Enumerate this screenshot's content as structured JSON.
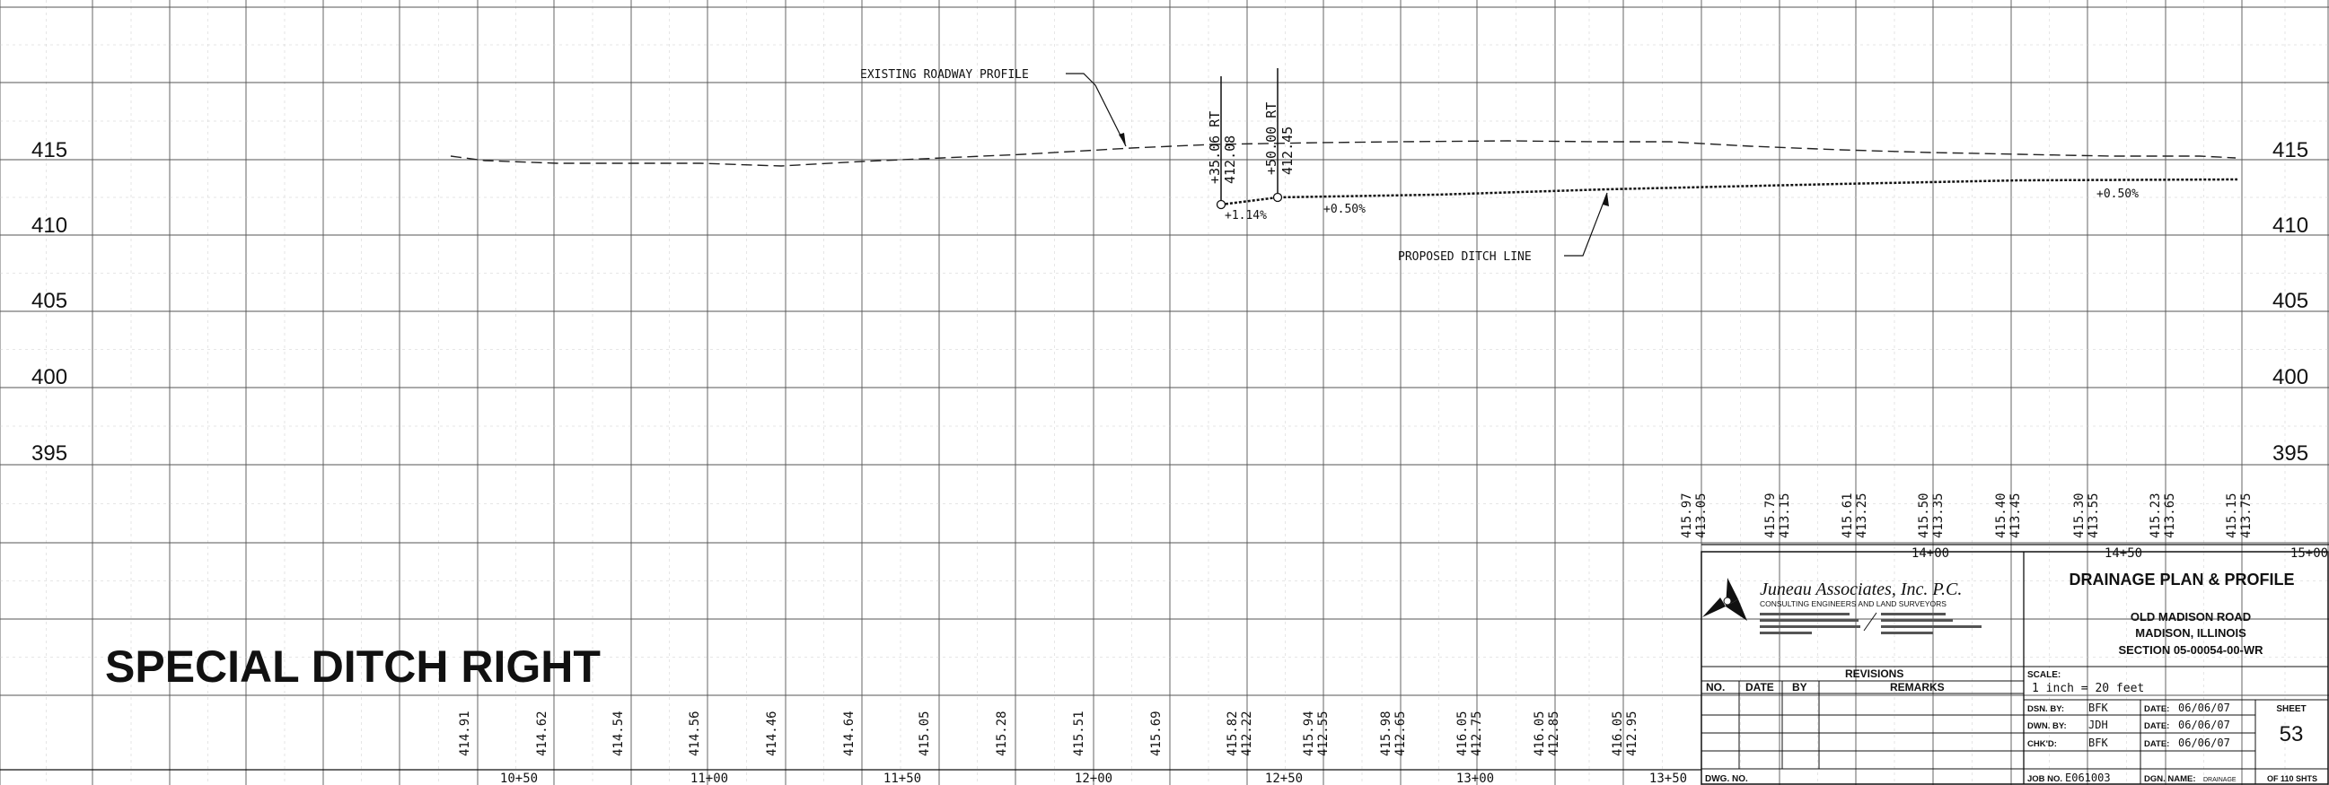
{
  "drawing": {
    "title": "SPECIAL DITCH RIGHT",
    "elevations": [
      "415",
      "410",
      "405",
      "400",
      "395"
    ],
    "stations": [
      "10+50",
      "11+00",
      "11+50",
      "12+00",
      "12+50",
      "13+00",
      "13+50",
      "14+00",
      "14+50",
      "15+00"
    ],
    "bottom_elevations": [
      [
        "414.91"
      ],
      [
        "414.62"
      ],
      [
        "414.54"
      ],
      [
        "414.56"
      ],
      [
        "414.46"
      ],
      [
        "414.64"
      ],
      [
        "415.05"
      ],
      [
        "415.28"
      ],
      [
        "415.51"
      ],
      [
        "415.69"
      ],
      [
        "415.82",
        "412.22"
      ],
      [
        "415.94",
        "412.55"
      ],
      [
        "415.98",
        "412.65"
      ],
      [
        "416.05",
        "412.75"
      ],
      [
        "416.05",
        "412.85"
      ],
      [
        "416.05",
        "412.95"
      ]
    ],
    "upper_elevations": [
      [
        "415.97",
        "413.05"
      ],
      [
        "415.79",
        "413.15"
      ],
      [
        "415.61",
        "413.25"
      ],
      [
        "415.50",
        "413.35"
      ],
      [
        "415.40",
        "413.45"
      ],
      [
        "415.30",
        "413.55"
      ],
      [
        "415.23",
        "413.65"
      ],
      [
        "415.15",
        "413.75"
      ]
    ],
    "annotations": {
      "existing_profile": "EXISTING ROADWAY PROFILE",
      "proposed_ditch": "PROPOSED DITCH LINE",
      "callout_1": [
        "+35.06 RT",
        "412.08"
      ],
      "callout_2": [
        "+50.00 RT",
        "412.45"
      ],
      "grade_1": "+1.14%",
      "grade_2": "+0.50%",
      "grade_3": "+0.50%"
    }
  },
  "title_block": {
    "company_name": "Juneau Associates, Inc. P.C.",
    "company_subtitle": "CONSULTING ENGINEERS AND LAND SURVEYORS",
    "plan_title": "DRAINAGE PLAN & PROFILE",
    "project_name": "OLD MADISON ROAD",
    "project_location": "MADISON, ILLINOIS",
    "section": "SECTION 05-00054-00-WR",
    "revisions_label": "REVISIONS",
    "col_no": "NO.",
    "col_date": "DATE",
    "col_by": "BY",
    "col_remarks": "REMARKS",
    "dwg_no_label": "DWG. NO.",
    "scale_label": "SCALE:",
    "scale_value": "1 inch = 20 feet",
    "dsn_by_label": "DSN. BY:",
    "dsn_by": "BFK",
    "dwn_by_label": "DWN. BY:",
    "dwn_by": "JDH",
    "chkd_label": "CHK'D:",
    "chkd_by": "BFK",
    "date_label": "DATE:",
    "date_1": "06/06/07",
    "date_2": "06/06/07",
    "date_3": "06/06/07",
    "job_no_label": "JOB NO.",
    "job_no": "E061003",
    "dgn_name_label": "DGN. NAME:",
    "dgn_name": "DRAINAGE",
    "sheet_label": "SHEET",
    "sheet_number": "53",
    "sheet_total": "OF 110 SHTS"
  }
}
